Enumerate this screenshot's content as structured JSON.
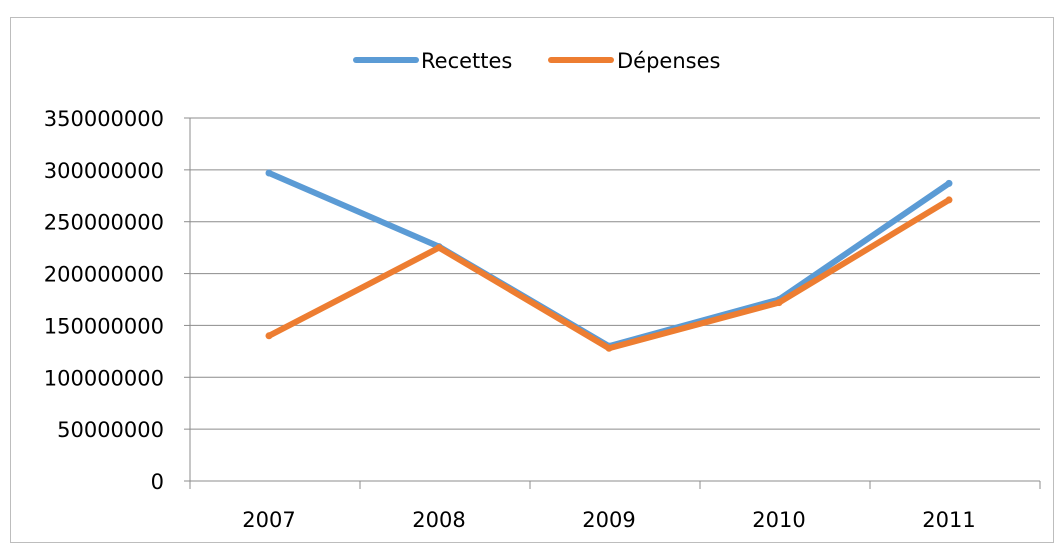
{
  "chart_data": {
    "type": "line",
    "title": "",
    "xlabel": "",
    "ylabel": "",
    "categories": [
      "2007",
      "2008",
      "2009",
      "2010",
      "2011"
    ],
    "series": [
      {
        "name": "Recettes",
        "color": "#5b9bd5",
        "values": [
          297000000,
          226000000,
          130000000,
          175000000,
          287000000
        ]
      },
      {
        "name": "Dépenses",
        "color": "#ed7d31",
        "values": [
          140000000,
          225000000,
          128000000,
          172000000,
          271000000
        ]
      }
    ],
    "ylim": [
      0,
      350000000
    ],
    "yticks": [
      0,
      50000000,
      100000000,
      150000000,
      200000000,
      250000000,
      300000000,
      350000000
    ],
    "ytick_labels": [
      "0",
      "50000000",
      "100000000",
      "150000000",
      "200000000",
      "250000000",
      "300000000",
      "350000000"
    ],
    "grid": "horizontal",
    "legend_position": "top"
  }
}
